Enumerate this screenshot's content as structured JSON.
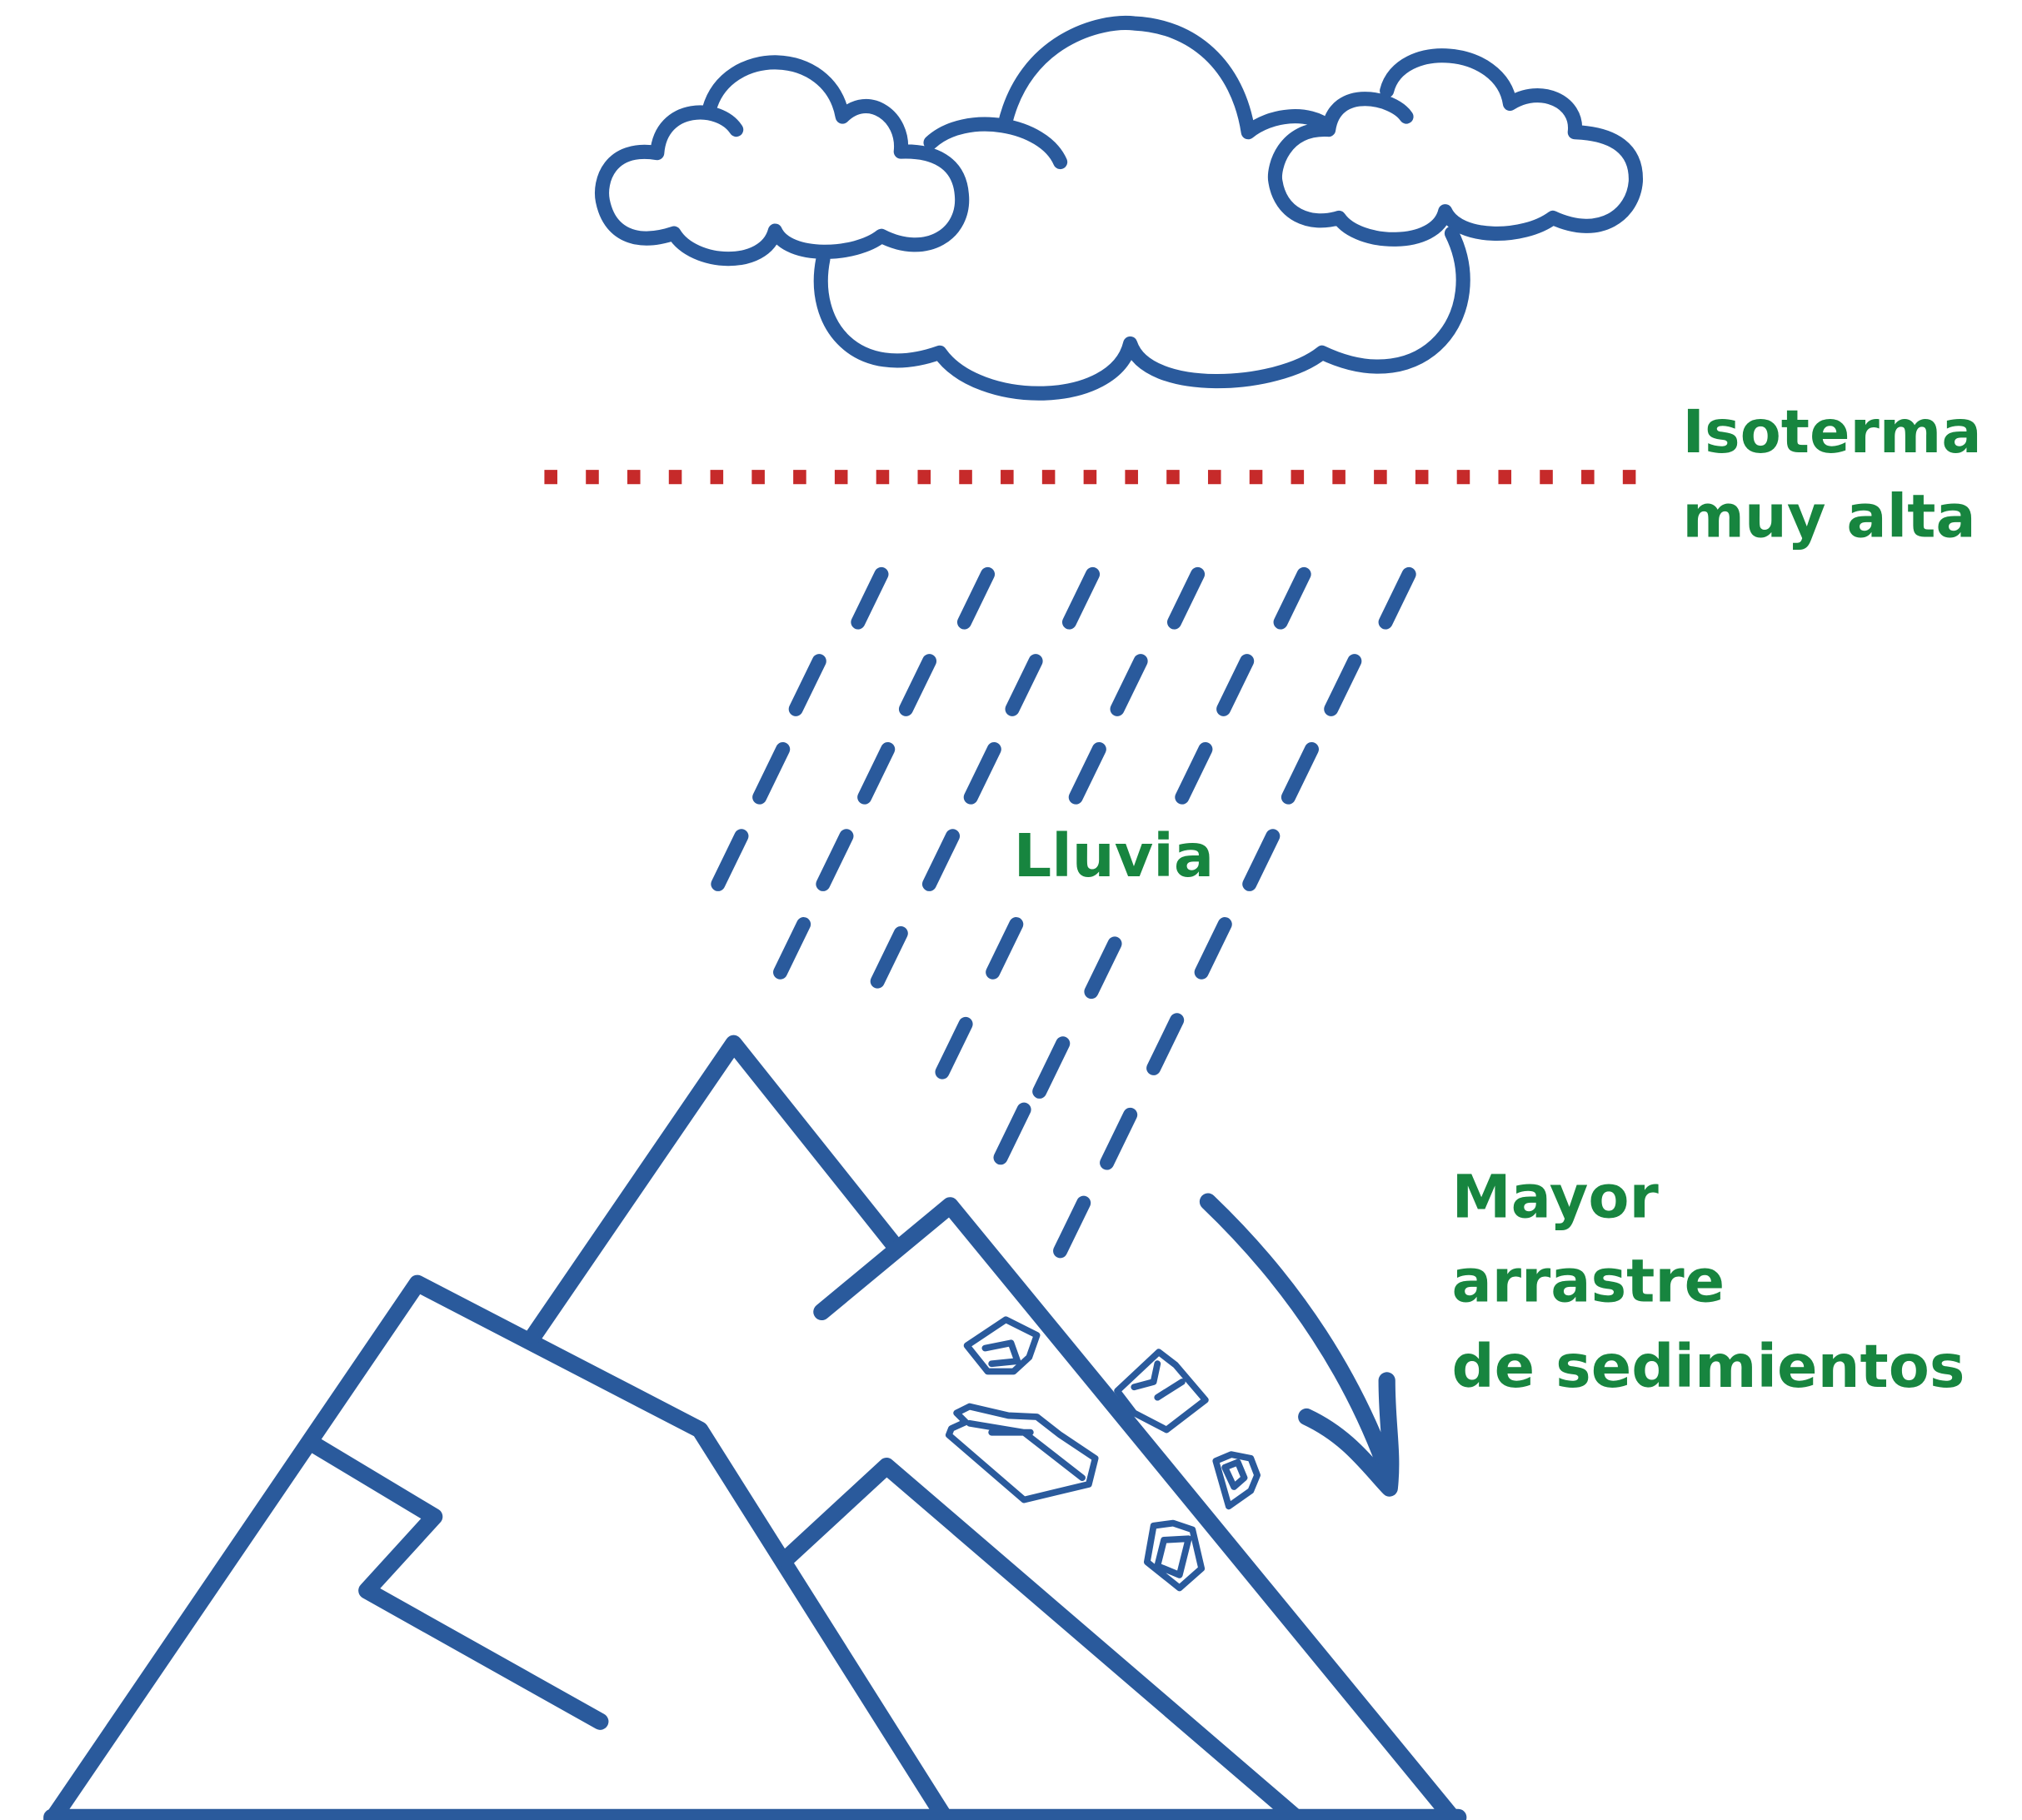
{
  "labels": {
    "isotherm": [
      "Isoterma",
      "muy alta"
    ],
    "rain": "Lluvia",
    "sediment": [
      "Mayor",
      "arrastre",
      "de sedimientos"
    ]
  }
}
